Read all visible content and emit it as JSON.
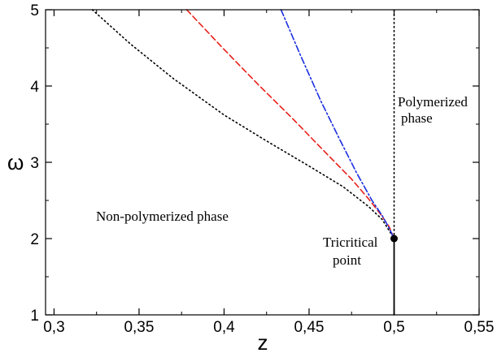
{
  "chart_data": {
    "type": "line",
    "title": "",
    "xlabel": "z",
    "ylabel": "ω",
    "xlim": [
      0.295,
      0.55
    ],
    "ylim": [
      1,
      5
    ],
    "xticks": [
      0.3,
      0.35,
      0.4,
      0.45,
      0.5,
      0.55
    ],
    "xtick_labels": [
      "0,3",
      "0,35",
      "0,4",
      "0,45",
      "0,5",
      "0,55"
    ],
    "yticks": [
      1,
      2,
      3,
      4,
      5
    ],
    "ytick_labels": [
      "1",
      "2",
      "3",
      "4",
      "5"
    ],
    "grid": false,
    "series": [
      {
        "style": "dotted",
        "color": "#000000",
        "x": [
          0.3225,
          0.345,
          0.37,
          0.4,
          0.425,
          0.45,
          0.47,
          0.485,
          0.493,
          0.5
        ],
        "y": [
          5.0,
          4.55,
          4.1,
          3.62,
          3.28,
          2.95,
          2.68,
          2.42,
          2.25,
          2.0
        ]
      },
      {
        "style": "dashed",
        "color": "#e8201a",
        "x": [
          0.378,
          0.4,
          0.42,
          0.44,
          0.46,
          0.475,
          0.485,
          0.492,
          0.497,
          0.5
        ],
        "y": [
          5.0,
          4.48,
          4.02,
          3.58,
          3.12,
          2.78,
          2.52,
          2.32,
          2.16,
          2.0
        ]
      },
      {
        "style": "dash-dot",
        "color": "#1a2ee0",
        "x": [
          0.4335,
          0.445,
          0.457,
          0.468,
          0.478,
          0.487,
          0.493,
          0.497,
          0.5
        ],
        "y": [
          5.0,
          4.4,
          3.8,
          3.3,
          2.86,
          2.5,
          2.3,
          2.14,
          2.0
        ]
      },
      {
        "style": "dotted",
        "color": "#000000",
        "x": [
          0.5,
          0.5
        ],
        "y": [
          2.0,
          5.0
        ]
      },
      {
        "style": "solid",
        "color": "#000000",
        "x": [
          0.5,
          0.5
        ],
        "y": [
          1.0,
          2.0
        ]
      }
    ],
    "points": [
      {
        "x": 0.5,
        "y": 2.0,
        "color": "#000000"
      }
    ],
    "annotations": {
      "polymerized": [
        "Polymerized",
        "phase"
      ],
      "non_polymerized": "Non-polymerized phase",
      "tricritical": [
        "Tricritical",
        "point"
      ]
    }
  }
}
